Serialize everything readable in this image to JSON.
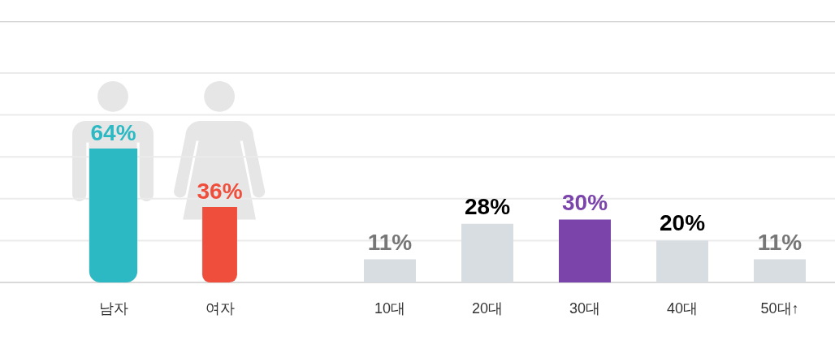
{
  "chart_data": [
    {
      "type": "bar",
      "categories": [
        "남자",
        "여자"
      ],
      "values": [
        64,
        36
      ],
      "value_labels": [
        "64%",
        "36%"
      ],
      "colors": [
        "#2cb9c3",
        "#f04e3c"
      ],
      "ylim": [
        0,
        100
      ],
      "yticks": [
        0,
        20,
        40,
        60,
        80,
        100
      ],
      "grid": true,
      "tick_labels": "x"
    },
    {
      "type": "bar",
      "categories": [
        "10대",
        "20대",
        "30대",
        "40대",
        "50대↑"
      ],
      "values": [
        11,
        28,
        30,
        20,
        11
      ],
      "value_labels": [
        "11%",
        "28%",
        "30%",
        "20%",
        "11%"
      ],
      "colors": [
        "#d8dde2",
        "#d8dde2",
        "#7b44ab",
        "#d8dde2",
        "#d8dde2"
      ],
      "ylim": [
        0,
        100
      ],
      "yticks": [
        0,
        20,
        40,
        60,
        80,
        100
      ],
      "grid": true,
      "tick_labels": "x"
    }
  ]
}
